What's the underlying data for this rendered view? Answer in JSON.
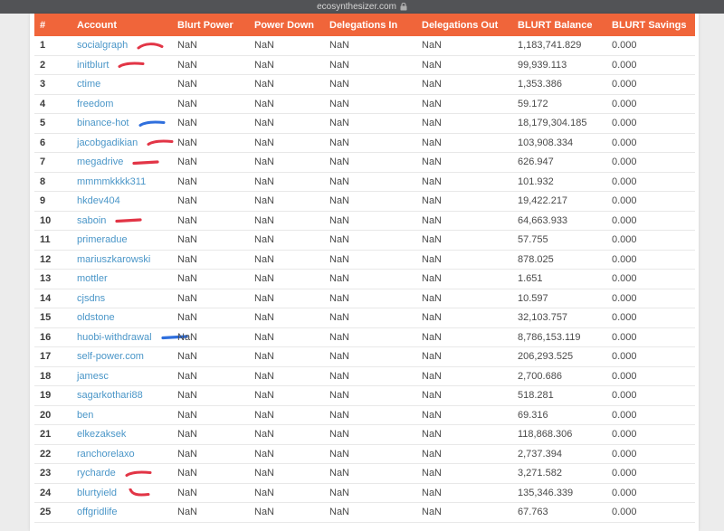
{
  "browser": {
    "url": "ecosynthesizer.com",
    "lock_icon": "lock-icon"
  },
  "colors": {
    "accent_orange": "#f0653a",
    "link_blue": "#4a96c8",
    "mark_red": "#e23546",
    "mark_blue": "#2f6fdd",
    "browser_bar": "#525356",
    "page_background": "#ececec"
  },
  "table": {
    "columns": [
      "#",
      "Account",
      "Blurt Power",
      "Power Down",
      "Delegations In",
      "Delegations Out",
      "BLURT Balance",
      "BLURT Savings"
    ],
    "rows": [
      {
        "rank": "1",
        "account": "socialgraph",
        "blurt_power": "NaN",
        "power_down": "NaN",
        "delegations_in": "NaN",
        "delegations_out": "NaN",
        "blurt_balance": "1,183,741.829",
        "blurt_savings": "0.000",
        "mark": {
          "color": "red",
          "shape": "arc"
        }
      },
      {
        "rank": "2",
        "account": "initblurt",
        "blurt_power": "NaN",
        "power_down": "NaN",
        "delegations_in": "NaN",
        "delegations_out": "NaN",
        "blurt_balance": "99,939.113",
        "blurt_savings": "0.000",
        "mark": {
          "color": "red",
          "shape": "swoosh"
        }
      },
      {
        "rank": "3",
        "account": "ctime",
        "blurt_power": "NaN",
        "power_down": "NaN",
        "delegations_in": "NaN",
        "delegations_out": "NaN",
        "blurt_balance": "1,353.386",
        "blurt_savings": "0.000",
        "mark": null
      },
      {
        "rank": "4",
        "account": "freedom",
        "blurt_power": "NaN",
        "power_down": "NaN",
        "delegations_in": "NaN",
        "delegations_out": "NaN",
        "blurt_balance": "59.172",
        "blurt_savings": "0.000",
        "mark": null
      },
      {
        "rank": "5",
        "account": "binance-hot",
        "blurt_power": "NaN",
        "power_down": "NaN",
        "delegations_in": "NaN",
        "delegations_out": "NaN",
        "blurt_balance": "18,179,304.185",
        "blurt_savings": "0.000",
        "mark": {
          "color": "blue",
          "shape": "swoosh"
        }
      },
      {
        "rank": "6",
        "account": "jacobgadikian",
        "blurt_power": "NaN",
        "power_down": "NaN",
        "delegations_in": "NaN",
        "delegations_out": "NaN",
        "blurt_balance": "103,908.334",
        "blurt_savings": "0.000",
        "mark": {
          "color": "red",
          "shape": "swoosh"
        }
      },
      {
        "rank": "7",
        "account": "megadrive",
        "blurt_power": "NaN",
        "power_down": "NaN",
        "delegations_in": "NaN",
        "delegations_out": "NaN",
        "blurt_balance": "626.947",
        "blurt_savings": "0.000",
        "mark": {
          "color": "red",
          "shape": "line"
        }
      },
      {
        "rank": "8",
        "account": "mmmmkkkk311",
        "blurt_power": "NaN",
        "power_down": "NaN",
        "delegations_in": "NaN",
        "delegations_out": "NaN",
        "blurt_balance": "101.932",
        "blurt_savings": "0.000",
        "mark": null
      },
      {
        "rank": "9",
        "account": "hkdev404",
        "blurt_power": "NaN",
        "power_down": "NaN",
        "delegations_in": "NaN",
        "delegations_out": "NaN",
        "blurt_balance": "19,422.217",
        "blurt_savings": "0.000",
        "mark": null
      },
      {
        "rank": "10",
        "account": "saboin",
        "blurt_power": "NaN",
        "power_down": "NaN",
        "delegations_in": "NaN",
        "delegations_out": "NaN",
        "blurt_balance": "64,663.933",
        "blurt_savings": "0.000",
        "mark": {
          "color": "red",
          "shape": "line"
        }
      },
      {
        "rank": "11",
        "account": "primeradue",
        "blurt_power": "NaN",
        "power_down": "NaN",
        "delegations_in": "NaN",
        "delegations_out": "NaN",
        "blurt_balance": "57.755",
        "blurt_savings": "0.000",
        "mark": null
      },
      {
        "rank": "12",
        "account": "mariuszkarowski",
        "blurt_power": "NaN",
        "power_down": "NaN",
        "delegations_in": "NaN",
        "delegations_out": "NaN",
        "blurt_balance": "878.025",
        "blurt_savings": "0.000",
        "mark": null
      },
      {
        "rank": "13",
        "account": "mottler",
        "blurt_power": "NaN",
        "power_down": "NaN",
        "delegations_in": "NaN",
        "delegations_out": "NaN",
        "blurt_balance": "1.651",
        "blurt_savings": "0.000",
        "mark": null
      },
      {
        "rank": "14",
        "account": "cjsdns",
        "blurt_power": "NaN",
        "power_down": "NaN",
        "delegations_in": "NaN",
        "delegations_out": "NaN",
        "blurt_balance": "10.597",
        "blurt_savings": "0.000",
        "mark": null
      },
      {
        "rank": "15",
        "account": "oldstone",
        "blurt_power": "NaN",
        "power_down": "NaN",
        "delegations_in": "NaN",
        "delegations_out": "NaN",
        "blurt_balance": "32,103.757",
        "blurt_savings": "0.000",
        "mark": null
      },
      {
        "rank": "16",
        "account": "huobi-withdrawal",
        "blurt_power": "NaN",
        "power_down": "NaN",
        "delegations_in": "NaN",
        "delegations_out": "NaN",
        "blurt_balance": "8,786,153.119",
        "blurt_savings": "0.000",
        "mark": {
          "color": "blue",
          "shape": "line"
        }
      },
      {
        "rank": "17",
        "account": "self-power.com",
        "blurt_power": "NaN",
        "power_down": "NaN",
        "delegations_in": "NaN",
        "delegations_out": "NaN",
        "blurt_balance": "206,293.525",
        "blurt_savings": "0.000",
        "mark": null
      },
      {
        "rank": "18",
        "account": "jamesc",
        "blurt_power": "NaN",
        "power_down": "NaN",
        "delegations_in": "NaN",
        "delegations_out": "NaN",
        "blurt_balance": "2,700.686",
        "blurt_savings": "0.000",
        "mark": null
      },
      {
        "rank": "19",
        "account": "sagarkothari88",
        "blurt_power": "NaN",
        "power_down": "NaN",
        "delegations_in": "NaN",
        "delegations_out": "NaN",
        "blurt_balance": "518.281",
        "blurt_savings": "0.000",
        "mark": null
      },
      {
        "rank": "20",
        "account": "ben",
        "blurt_power": "NaN",
        "power_down": "NaN",
        "delegations_in": "NaN",
        "delegations_out": "NaN",
        "blurt_balance": "69.316",
        "blurt_savings": "0.000",
        "mark": null
      },
      {
        "rank": "21",
        "account": "elkezaksek",
        "blurt_power": "NaN",
        "power_down": "NaN",
        "delegations_in": "NaN",
        "delegations_out": "NaN",
        "blurt_balance": "118,868.306",
        "blurt_savings": "0.000",
        "mark": null
      },
      {
        "rank": "22",
        "account": "ranchorelaxo",
        "blurt_power": "NaN",
        "power_down": "NaN",
        "delegations_in": "NaN",
        "delegations_out": "NaN",
        "blurt_balance": "2,737.394",
        "blurt_savings": "0.000",
        "mark": null
      },
      {
        "rank": "23",
        "account": "rycharde",
        "blurt_power": "NaN",
        "power_down": "NaN",
        "delegations_in": "NaN",
        "delegations_out": "NaN",
        "blurt_balance": "3,271.582",
        "blurt_savings": "0.000",
        "mark": {
          "color": "red",
          "shape": "swoosh"
        }
      },
      {
        "rank": "24",
        "account": "blurtyield",
        "blurt_power": "NaN",
        "power_down": "NaN",
        "delegations_in": "NaN",
        "delegations_out": "NaN",
        "blurt_balance": "135,346.339",
        "blurt_savings": "0.000",
        "mark": {
          "color": "red",
          "shape": "hook"
        }
      },
      {
        "rank": "25",
        "account": "offgridlife",
        "blurt_power": "NaN",
        "power_down": "NaN",
        "delegations_in": "NaN",
        "delegations_out": "NaN",
        "blurt_balance": "67.763",
        "blurt_savings": "0.000",
        "mark": null
      }
    ]
  }
}
